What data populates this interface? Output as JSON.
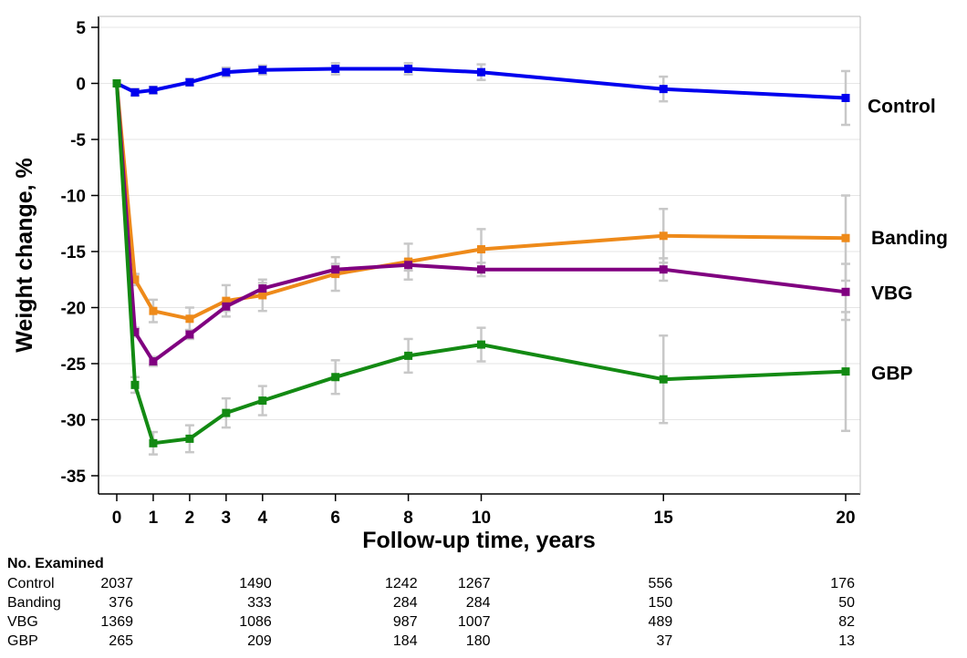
{
  "chart_data": {
    "type": "line",
    "title": "",
    "xlabel": "Follow-up time, years",
    "ylabel": "Weight change, %",
    "xlim": [
      0,
      20
    ],
    "ylim": [
      -35,
      5
    ],
    "x_ticks": [
      0,
      1,
      2,
      3,
      4,
      6,
      8,
      10,
      15,
      20
    ],
    "y_ticks": [
      5,
      0,
      -5,
      -10,
      -15,
      -20,
      -25,
      -30,
      -35
    ],
    "grid": true,
    "legend": "labels at right end of each line",
    "error_bars": true,
    "series": [
      {
        "name": "Control",
        "color": "#0000ee",
        "x": [
          0,
          0.5,
          1,
          2,
          3,
          4,
          6,
          8,
          10,
          15,
          20
        ],
        "y": [
          0,
          -0.8,
          -0.6,
          0.1,
          1.0,
          1.2,
          1.3,
          1.3,
          1.0,
          -0.5,
          -1.3
        ],
        "err": [
          0,
          0.3,
          0.3,
          0.3,
          0.4,
          0.4,
          0.5,
          0.5,
          0.7,
          1.1,
          2.4
        ]
      },
      {
        "name": "Banding",
        "color": "#ee8a1a",
        "x": [
          0,
          0.5,
          1,
          2,
          3,
          4,
          6,
          8,
          10,
          15,
          20
        ],
        "y": [
          0,
          -17.5,
          -20.3,
          -21.0,
          -19.4,
          -18.9,
          -17.0,
          -15.9,
          -14.8,
          -13.6,
          -13.8
        ],
        "err": [
          0,
          0.5,
          1.0,
          1.0,
          1.4,
          1.4,
          1.5,
          1.6,
          1.8,
          2.4,
          3.8
        ]
      },
      {
        "name": "VBG",
        "color": "#800080",
        "x": [
          0,
          0.5,
          1,
          2,
          3,
          4,
          6,
          8,
          10,
          15,
          20
        ],
        "y": [
          0,
          -22.2,
          -24.8,
          -22.4,
          -19.9,
          -18.3,
          -16.6,
          -16.2,
          -16.6,
          -16.6,
          -18.6
        ],
        "err": [
          0,
          0.4,
          0.4,
          0.4,
          0.4,
          0.5,
          0.5,
          0.5,
          0.6,
          1.0,
          2.5
        ]
      },
      {
        "name": "GBP",
        "color": "#138a13",
        "x": [
          0,
          0.5,
          1,
          2,
          3,
          4,
          6,
          8,
          10,
          15,
          20
        ],
        "y": [
          0,
          -26.9,
          -32.1,
          -31.7,
          -29.4,
          -28.3,
          -26.2,
          -24.3,
          -23.3,
          -26.4,
          -25.7
        ],
        "err": [
          0,
          0.7,
          1.0,
          1.2,
          1.3,
          1.3,
          1.5,
          1.5,
          1.5,
          3.9,
          5.3
        ]
      }
    ]
  },
  "examined_table": {
    "title": "No. Examined",
    "x_columns": [
      0,
      4,
      8,
      10,
      15,
      20
    ],
    "rows": [
      {
        "label": "Control",
        "values": [
          "2037",
          "1490",
          "1242",
          "1267",
          "556",
          "176"
        ]
      },
      {
        "label": "Banding",
        "values": [
          "376",
          "333",
          "284",
          "284",
          "150",
          "50"
        ]
      },
      {
        "label": "VBG",
        "values": [
          "1369",
          "1086",
          "987",
          "1007",
          "489",
          "82"
        ]
      },
      {
        "label": "GBP",
        "values": [
          "265",
          "209",
          "184",
          "180",
          "37",
          "13"
        ]
      }
    ]
  }
}
